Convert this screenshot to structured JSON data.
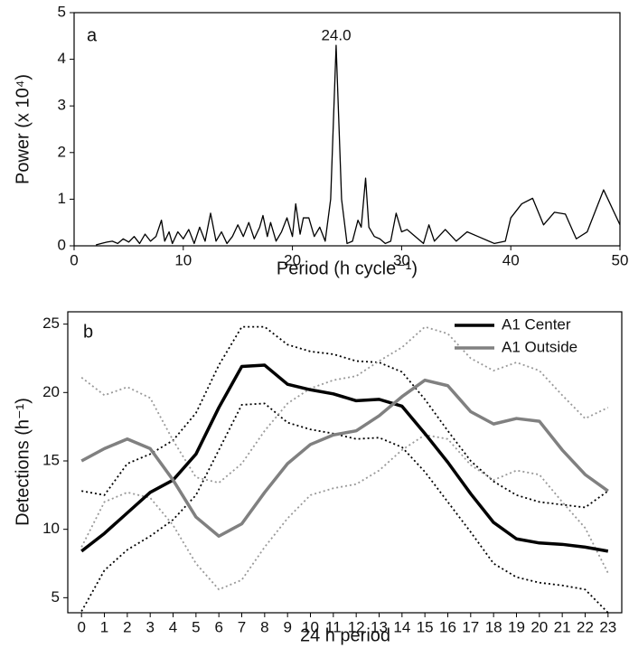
{
  "chart_data": [
    {
      "type": "line",
      "panel": "a",
      "annotation": "24.0",
      "xlabel": "Period (h cycle⁻¹)",
      "ylabel": "Power (x 10⁴)",
      "x": [
        2,
        2.5,
        3,
        3.5,
        4,
        4.5,
        5,
        5.5,
        6,
        6.5,
        7,
        7.5,
        8,
        8.3,
        8.7,
        9,
        9.5,
        10,
        10.5,
        11,
        11.5,
        12,
        12.5,
        13,
        13.5,
        14,
        14.5,
        15,
        15.5,
        16,
        16.5,
        17,
        17.3,
        17.7,
        18,
        18.5,
        19,
        19.5,
        20,
        20.3,
        20.7,
        21,
        21.5,
        22,
        22.5,
        23,
        23.5,
        24,
        24.5,
        25,
        25.5,
        26,
        26.3,
        26.7,
        27,
        27.5,
        28,
        28.5,
        29,
        29.5,
        30,
        30.5,
        31,
        32,
        32.5,
        33,
        34,
        35,
        36,
        37,
        38,
        38.5,
        39.5,
        40,
        41,
        42,
        43,
        44,
        45,
        46,
        47,
        48.5,
        50
      ],
      "series": [
        {
          "color": "#000000",
          "style": "solid",
          "values": [
            0.02,
            0.05,
            0.08,
            0.1,
            0.05,
            0.15,
            0.08,
            0.2,
            0.05,
            0.25,
            0.1,
            0.2,
            0.55,
            0.1,
            0.3,
            0.05,
            0.3,
            0.15,
            0.35,
            0.05,
            0.4,
            0.1,
            0.7,
            0.1,
            0.3,
            0.05,
            0.2,
            0.45,
            0.2,
            0.5,
            0.15,
            0.4,
            0.65,
            0.2,
            0.5,
            0.1,
            0.3,
            0.6,
            0.2,
            0.9,
            0.25,
            0.6,
            0.6,
            0.2,
            0.4,
            0.1,
            1.0,
            4.3,
            1.0,
            0.05,
            0.1,
            0.55,
            0.4,
            1.45,
            0.4,
            0.2,
            0.15,
            0.05,
            0.1,
            0.7,
            0.3,
            0.35,
            0.25,
            0.05,
            0.45,
            0.1,
            0.35,
            0.1,
            0.3,
            0.2,
            0.1,
            0.05,
            0.1,
            0.6,
            0.9,
            1.02,
            0.45,
            0.72,
            0.68,
            0.15,
            0.3,
            1.2,
            0.45
          ]
        }
      ],
      "xlim": [
        0,
        50
      ],
      "xticks": [
        0,
        10,
        20,
        30,
        40,
        50
      ],
      "ylim": [
        0,
        5
      ],
      "yticks": [
        0,
        1,
        2,
        3,
        4,
        5
      ]
    },
    {
      "type": "line",
      "panel": "b",
      "legend": "upper right",
      "xlabel": "24 h period",
      "ylabel": "Detections (h⁻¹)",
      "x": [
        0,
        1,
        2,
        3,
        4,
        5,
        6,
        7,
        8,
        9,
        10,
        11,
        12,
        13,
        14,
        15,
        16,
        17,
        18,
        19,
        20,
        21,
        22,
        23
      ],
      "series": [
        {
          "color": "#000000",
          "style": "dotted",
          "values": [
            12.8,
            12.5,
            14.8,
            15.5,
            16.5,
            18.5,
            22.0,
            24.8,
            24.8,
            23.5,
            23.0,
            22.8,
            22.3,
            22.2,
            21.5,
            19.5,
            17.2,
            15.0,
            13.5,
            12.5,
            12.0,
            11.8,
            11.6,
            12.8
          ]
        },
        {
          "color": "#000000",
          "style": "dotted",
          "values": [
            4.0,
            7.0,
            8.5,
            9.5,
            10.7,
            12.5,
            15.8,
            19.1,
            19.2,
            17.8,
            17.3,
            17.0,
            16.6,
            16.7,
            16.0,
            14.2,
            12.0,
            9.8,
            7.5,
            6.5,
            6.1,
            5.9,
            5.6,
            3.9
          ]
        },
        {
          "color": "#999999",
          "style": "dotted",
          "values": [
            21.1,
            19.8,
            20.4,
            19.6,
            16.5,
            13.8,
            13.4,
            14.8,
            17.2,
            19.2,
            20.3,
            20.9,
            21.2,
            22.3,
            23.3,
            24.8,
            24.3,
            22.5,
            21.6,
            22.2,
            21.6,
            19.8,
            18.1,
            18.9
          ]
        },
        {
          "color": "#999999",
          "style": "dotted",
          "values": [
            8.7,
            12.0,
            12.7,
            12.3,
            10.3,
            7.5,
            5.6,
            6.3,
            8.7,
            10.8,
            12.5,
            13.0,
            13.3,
            14.3,
            15.8,
            16.9,
            16.6,
            14.7,
            13.6,
            14.3,
            14.0,
            12.0,
            10.1,
            6.8
          ]
        },
        {
          "name": "A1 Center",
          "color": "#000000",
          "style": "solid",
          "values": [
            8.4,
            9.7,
            11.2,
            12.7,
            13.6,
            15.5,
            18.9,
            21.9,
            22.0,
            20.6,
            20.2,
            19.9,
            19.4,
            19.5,
            19.0,
            17.0,
            14.9,
            12.6,
            10.5,
            9.3,
            9.0,
            8.9,
            8.7,
            8.4
          ]
        },
        {
          "name": "A1 Outside",
          "color": "#808080",
          "style": "solid",
          "values": [
            15.0,
            15.9,
            16.6,
            15.9,
            13.6,
            10.9,
            9.5,
            10.4,
            12.7,
            14.8,
            16.2,
            16.9,
            17.2,
            18.3,
            19.7,
            20.9,
            20.5,
            18.6,
            17.7,
            18.1,
            17.9,
            15.8,
            14.0,
            12.8
          ]
        }
      ],
      "xlim": [
        -0.6,
        23.6
      ],
      "xticks": [
        0,
        1,
        2,
        3,
        4,
        5,
        6,
        7,
        8,
        9,
        10,
        11,
        12,
        13,
        14,
        15,
        16,
        17,
        18,
        19,
        20,
        21,
        22,
        23
      ],
      "ylim": [
        3.9,
        25.9
      ],
      "yticks": [
        5,
        10,
        15,
        20,
        25
      ]
    }
  ]
}
